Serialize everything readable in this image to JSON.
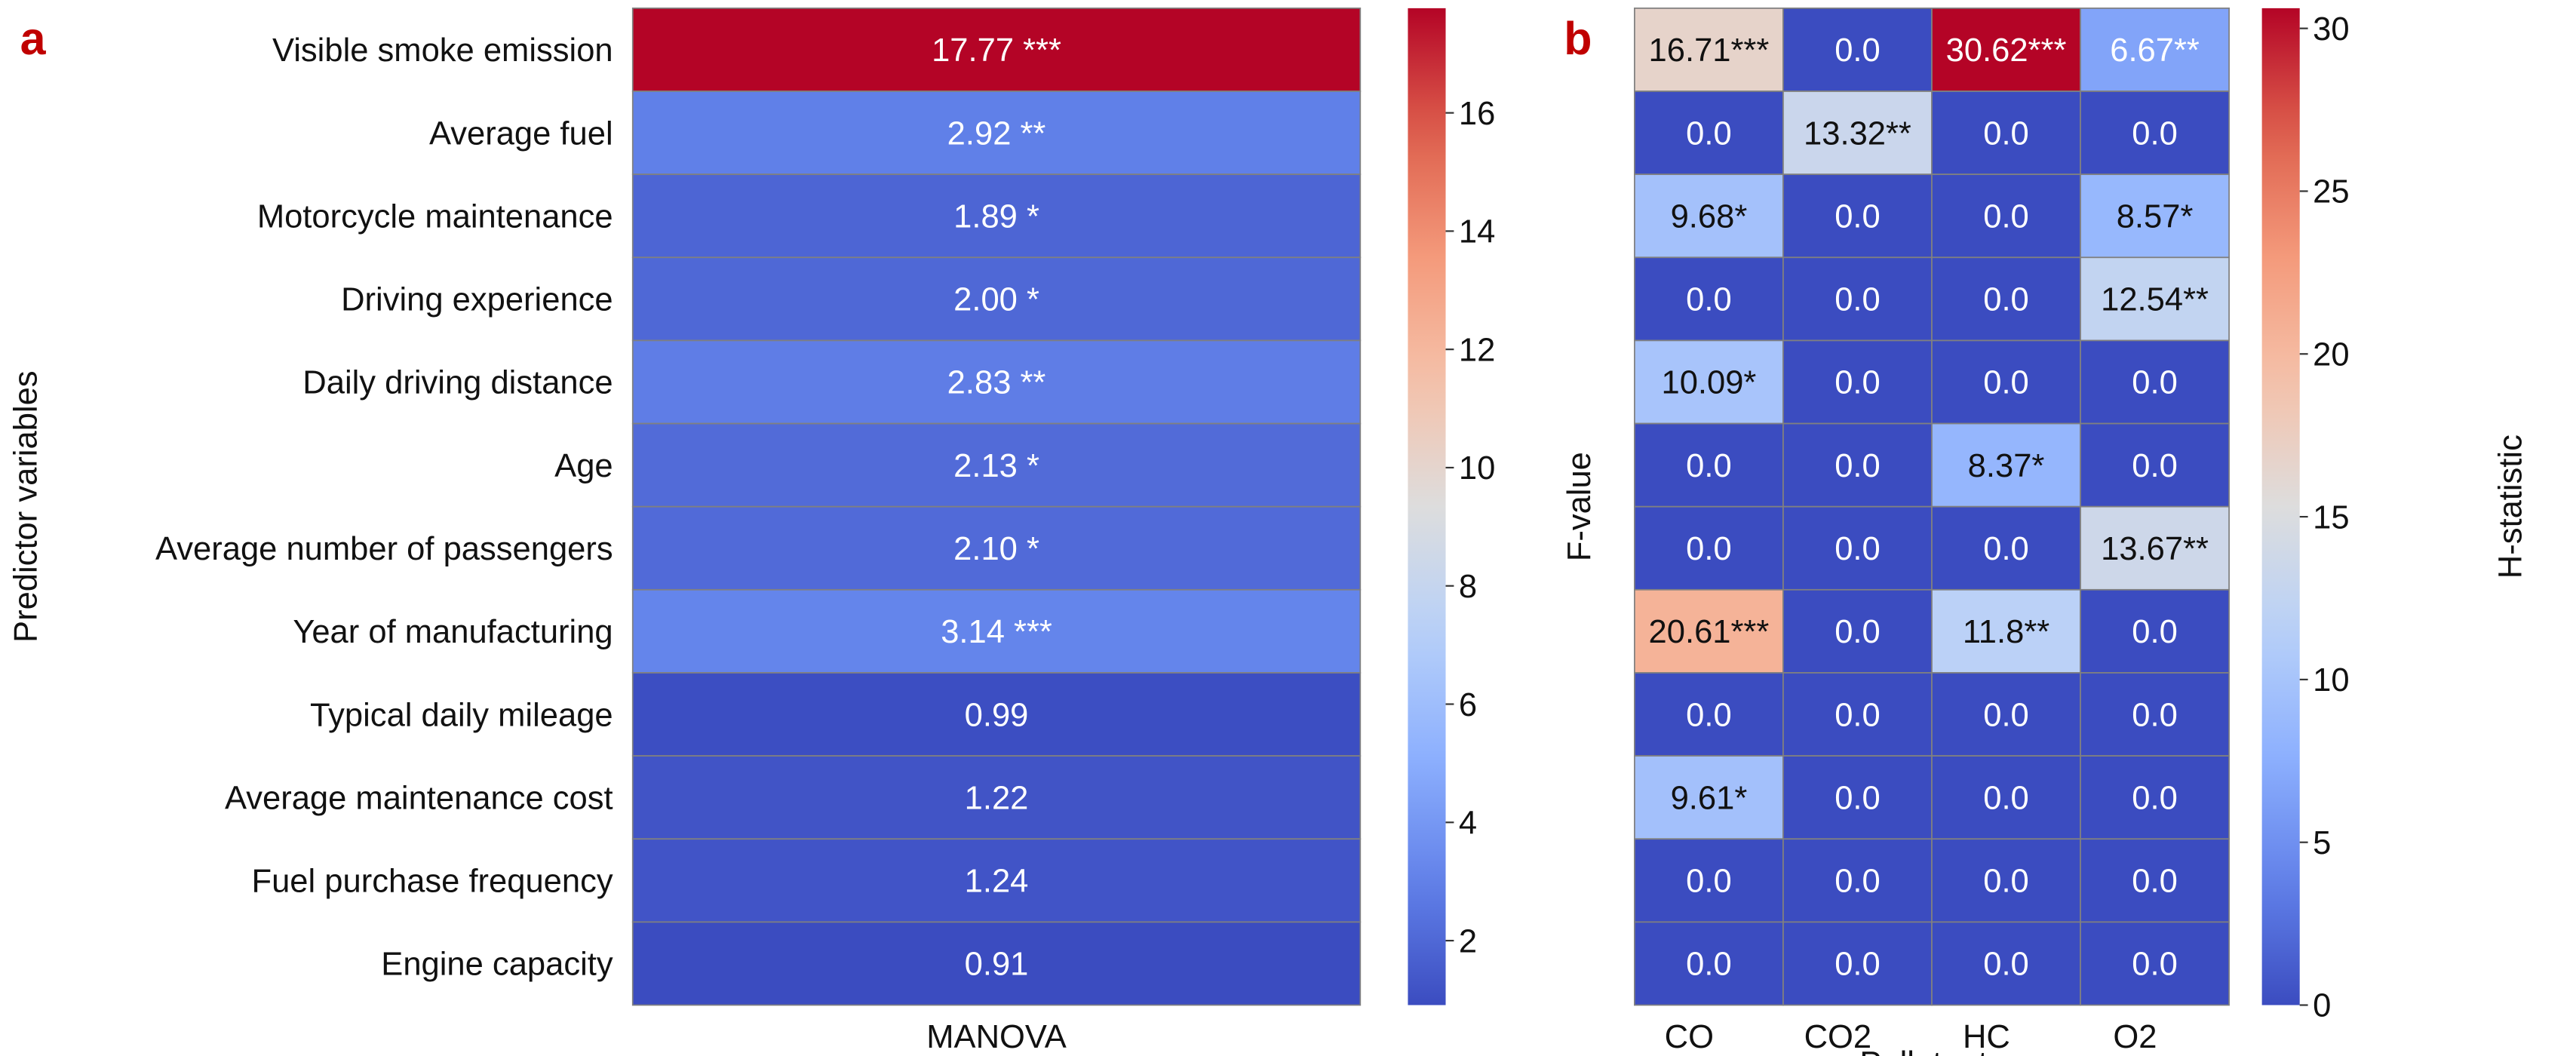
{
  "chart_data": [
    {
      "panel": "a",
      "type": "heatmap",
      "ylabel": "Predictor variables",
      "xlabel": "",
      "columns": [
        "MANOVA"
      ],
      "rows": [
        "Visible smoke emission",
        "Average fuel",
        "Motorcycle maintenance",
        "Driving experience",
        "Daily driving distance",
        "Age",
        "Average number of passengers",
        "Year of manufacturing",
        "Typical daily mileage",
        "Average maintenance cost",
        "Fuel purchase frequency",
        "Engine capacity"
      ],
      "values": [
        [
          17.77
        ],
        [
          2.92
        ],
        [
          1.89
        ],
        [
          2.0
        ],
        [
          2.83
        ],
        [
          2.13
        ],
        [
          2.1
        ],
        [
          3.14
        ],
        [
          0.99
        ],
        [
          1.22
        ],
        [
          1.24
        ],
        [
          0.91
        ]
      ],
      "annotations": [
        [
          "17.77 ***"
        ],
        [
          "2.92 **"
        ],
        [
          "1.89 *"
        ],
        [
          "2.00 *"
        ],
        [
          "2.83 **"
        ],
        [
          "2.13 *"
        ],
        [
          "2.10 *"
        ],
        [
          "3.14 ***"
        ],
        [
          "0.99"
        ],
        [
          "1.22"
        ],
        [
          "1.24"
        ],
        [
          "0.91"
        ]
      ],
      "colormap": "coolwarm",
      "vrange": [
        0.91,
        17.77
      ],
      "colorbar": {
        "label": "F-value",
        "ticks": [
          2,
          4,
          6,
          8,
          10,
          12,
          14,
          16
        ],
        "tick_labels": [
          "2",
          "4",
          "6",
          "8",
          "10",
          "12",
          "14",
          "16"
        ]
      }
    },
    {
      "panel": "b",
      "type": "heatmap",
      "xlabel": "Pollutants",
      "ylabel": "",
      "columns": [
        "CO",
        "CO2",
        "HC",
        "O2"
      ],
      "values": [
        [
          16.71,
          0.0,
          30.62,
          6.67
        ],
        [
          0.0,
          13.32,
          0.0,
          0.0
        ],
        [
          9.68,
          0.0,
          0.0,
          8.57
        ],
        [
          0.0,
          0.0,
          0.0,
          12.54
        ],
        [
          10.09,
          0.0,
          0.0,
          0.0
        ],
        [
          0.0,
          0.0,
          8.37,
          0.0
        ],
        [
          0.0,
          0.0,
          0.0,
          13.67
        ],
        [
          20.61,
          0.0,
          11.8,
          0.0
        ],
        [
          0.0,
          0.0,
          0.0,
          0.0
        ],
        [
          9.61,
          0.0,
          0.0,
          0.0
        ],
        [
          0.0,
          0.0,
          0.0,
          0.0
        ],
        [
          0.0,
          0.0,
          0.0,
          0.0
        ]
      ],
      "annotations": [
        [
          "16.71***",
          "0.0",
          "30.62***",
          "6.67**"
        ],
        [
          "0.0",
          "13.32**",
          "0.0",
          "0.0"
        ],
        [
          "9.68*",
          "0.0",
          "0.0",
          "8.57*"
        ],
        [
          "0.0",
          "0.0",
          "0.0",
          "12.54**"
        ],
        [
          "10.09*",
          "0.0",
          "0.0",
          "0.0"
        ],
        [
          "0.0",
          "0.0",
          "8.37*",
          "0.0"
        ],
        [
          "0.0",
          "0.0",
          "0.0",
          "13.67**"
        ],
        [
          "20.61***",
          "0.0",
          "11.8**",
          "0.0"
        ],
        [
          "0.0",
          "0.0",
          "0.0",
          "0.0"
        ],
        [
          "9.61*",
          "0.0",
          "0.0",
          "0.0"
        ],
        [
          "0.0",
          "0.0",
          "0.0",
          "0.0"
        ],
        [
          "0.0",
          "0.0",
          "0.0",
          "0.0"
        ]
      ],
      "colormap": "coolwarm",
      "vrange": [
        0,
        30.62
      ],
      "colorbar": {
        "label": "H-statistic",
        "ticks": [
          0,
          5,
          10,
          15,
          20,
          25,
          30
        ],
        "tick_labels": [
          "0",
          "5",
          "10",
          "15",
          "20",
          "25",
          "30"
        ]
      }
    }
  ],
  "panel_labels": {
    "a": "a",
    "b": "b"
  }
}
